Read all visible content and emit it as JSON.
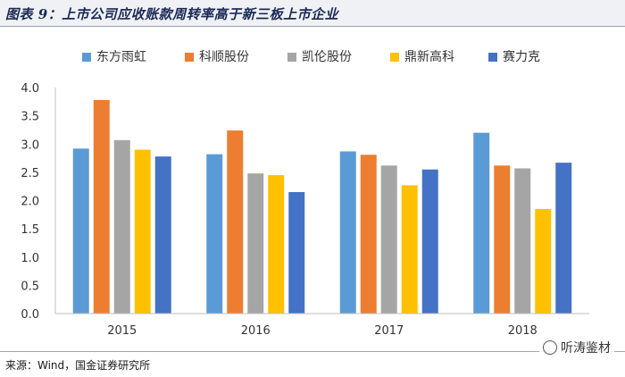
{
  "title": "图表 9：上市公司应收账款周转率高于新三板上市企业",
  "source": "来源：Wind，国金证券研究所",
  "watermark": "听涛鉴材",
  "chart_data": {
    "type": "bar",
    "categories": [
      "2015",
      "2016",
      "2017",
      "2018"
    ],
    "series": [
      {
        "name": "东方雨虹",
        "color": "#5b9bd5",
        "values": [
          2.92,
          2.82,
          2.87,
          3.2
        ]
      },
      {
        "name": "科顺股份",
        "color": "#ed7d31",
        "values": [
          3.78,
          3.24,
          2.81,
          2.62
        ]
      },
      {
        "name": "凯伦股份",
        "color": "#a5a5a5",
        "values": [
          3.07,
          2.48,
          2.62,
          2.57
        ]
      },
      {
        "name": "鼎新高科",
        "color": "#ffc000",
        "values": [
          2.9,
          2.45,
          2.27,
          1.85
        ]
      },
      {
        "name": "赛力克",
        "color": "#4472c4",
        "values": [
          2.78,
          2.15,
          2.55,
          2.67
        ]
      }
    ],
    "yticks": [
      "0.0",
      "0.5",
      "1.0",
      "1.5",
      "2.0",
      "2.5",
      "3.0",
      "3.5",
      "4.0"
    ],
    "ylim": [
      0,
      4.0
    ],
    "grid": false,
    "legend": "top-center"
  }
}
